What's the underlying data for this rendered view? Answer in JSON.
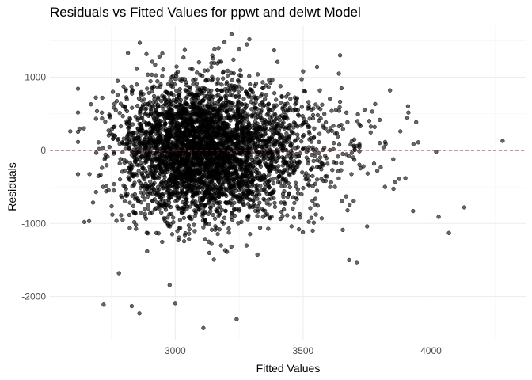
{
  "chart_data": {
    "type": "scatter",
    "title": "Residuals vs Fitted Values for ppwt and delwt Model",
    "xlabel": "Fitted Values",
    "ylabel": "Residuals",
    "xlim": [
      2510,
      4370
    ],
    "ylim": [
      -2600,
      1700
    ],
    "x_ticks": [
      3000,
      3500,
      4000
    ],
    "x_tick_labels": [
      "3000",
      "3500",
      "4000"
    ],
    "y_ticks": [
      -2000,
      -1000,
      0,
      1000
    ],
    "y_tick_labels": [
      "-2000",
      "-1000",
      "0",
      "1000"
    ],
    "reference_line": {
      "y": 0,
      "style": "dashed",
      "color": "#b22222"
    },
    "grid": true,
    "point_color": "#000000",
    "point_alpha": 0.6,
    "point_count_note": "Dense cloud of ~4300 points centered near fitted 3100, residual 0; core cloud generated by script, outliers listed below",
    "outliers": [
      {
        "x": 2590,
        "y": 260
      },
      {
        "x": 2645,
        "y": -980
      },
      {
        "x": 2700,
        "y": -350
      },
      {
        "x": 2715,
        "y": 720
      },
      {
        "x": 2720,
        "y": -2110
      },
      {
        "x": 2730,
        "y": -560
      },
      {
        "x": 2760,
        "y": -550
      },
      {
        "x": 2775,
        "y": 950
      },
      {
        "x": 2780,
        "y": -1680
      },
      {
        "x": 2830,
        "y": -2130
      },
      {
        "x": 2860,
        "y": -2230
      },
      {
        "x": 2890,
        "y": -1380
      },
      {
        "x": 3000,
        "y": -2090
      },
      {
        "x": 3110,
        "y": -2430
      },
      {
        "x": 3220,
        "y": 1590
      },
      {
        "x": 3240,
        "y": -2310
      },
      {
        "x": 3250,
        "y": 1380
      },
      {
        "x": 3280,
        "y": 1450
      },
      {
        "x": 3290,
        "y": 1520
      },
      {
        "x": 3400,
        "y": 1210
      },
      {
        "x": 3500,
        "y": 1080
      },
      {
        "x": 3640,
        "y": 1050
      },
      {
        "x": 3650,
        "y": 850
      },
      {
        "x": 3680,
        "y": -1500
      },
      {
        "x": 3700,
        "y": 50
      },
      {
        "x": 3710,
        "y": -1540
      },
      {
        "x": 3750,
        "y": -1040
      },
      {
        "x": 3790,
        "y": -280
      },
      {
        "x": 3800,
        "y": 100
      },
      {
        "x": 3820,
        "y": -500
      },
      {
        "x": 3840,
        "y": 820
      },
      {
        "x": 3860,
        "y": -430
      },
      {
        "x": 3880,
        "y": 260
      },
      {
        "x": 3900,
        "y": -380
      },
      {
        "x": 3930,
        "y": -830
      },
      {
        "x": 3950,
        "y": 110
      },
      {
        "x": 4020,
        "y": -20
      },
      {
        "x": 4030,
        "y": -910
      },
      {
        "x": 4070,
        "y": -1130
      },
      {
        "x": 4130,
        "y": -780
      },
      {
        "x": 4280,
        "y": 130
      }
    ]
  }
}
